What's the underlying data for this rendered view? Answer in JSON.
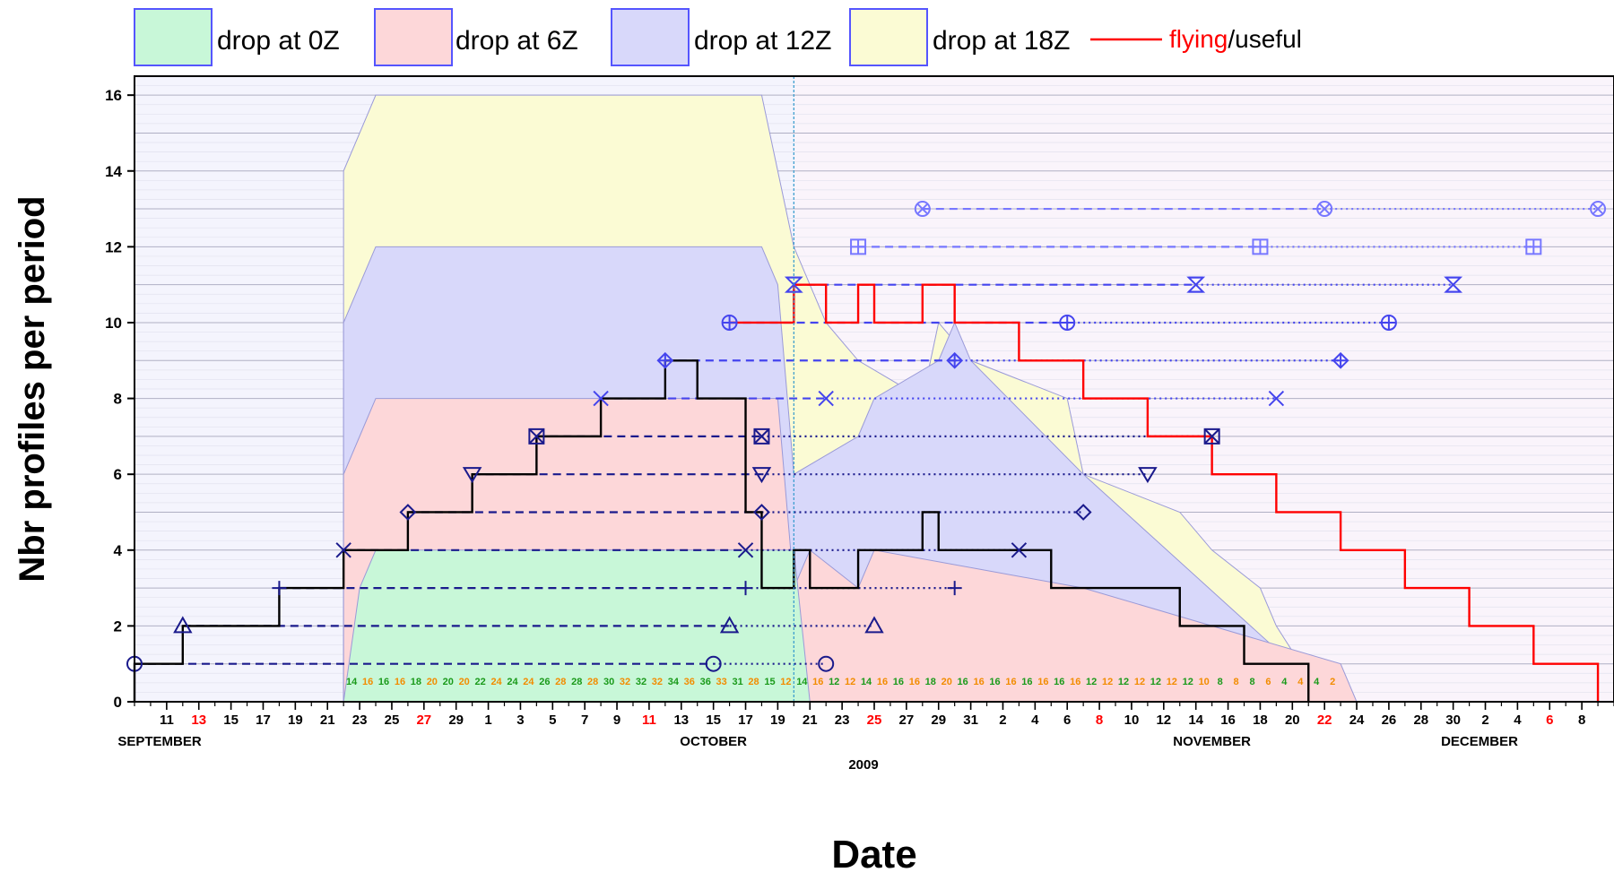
{
  "chart_data": {
    "type": "area",
    "xlabel": "Date",
    "ylabel": "Nbr profiles per period",
    "year_label": "2009",
    "ylim": [
      0,
      16.5
    ],
    "xlim": [
      "2009-09-09",
      "2009-12-10"
    ],
    "y_ticks": [
      0,
      2,
      4,
      6,
      8,
      10,
      12,
      14,
      16
    ],
    "x_tick_dates": [
      "2009-09-11",
      "2009-09-13",
      "2009-09-15",
      "2009-09-17",
      "2009-09-19",
      "2009-09-21",
      "2009-09-23",
      "2009-09-25",
      "2009-09-27",
      "2009-09-29",
      "2009-10-01",
      "2009-10-03",
      "2009-10-05",
      "2009-10-07",
      "2009-10-09",
      "2009-10-11",
      "2009-10-13",
      "2009-10-15",
      "2009-10-17",
      "2009-10-19",
      "2009-10-21",
      "2009-10-23",
      "2009-10-25",
      "2009-10-27",
      "2009-10-29",
      "2009-10-31",
      "2009-11-02",
      "2009-11-04",
      "2009-11-06",
      "2009-11-08",
      "2009-11-10",
      "2009-11-12",
      "2009-11-14",
      "2009-11-16",
      "2009-11-18",
      "2009-11-20",
      "2009-11-22",
      "2009-11-24",
      "2009-11-26",
      "2009-11-28",
      "2009-11-30",
      "2009-12-02",
      "2009-12-04",
      "2009-12-06",
      "2009-12-08"
    ],
    "x_tick_labels": [
      "11",
      "13",
      "15",
      "17",
      "19",
      "21",
      "23",
      "25",
      "27",
      "29",
      "1",
      "3",
      "5",
      "7",
      "9",
      "11",
      "13",
      "15",
      "17",
      "19",
      "21",
      "23",
      "25",
      "27",
      "29",
      "31",
      "2",
      "4",
      "6",
      "8",
      "10",
      "12",
      "14",
      "16",
      "18",
      "20",
      "22",
      "24",
      "26",
      "28",
      "30",
      "2",
      "4",
      "6",
      "8"
    ],
    "x_tick_highlight": [
      "2009-09-13",
      "2009-09-27",
      "2009-10-11",
      "2009-10-25",
      "2009-11-08",
      "2009-11-22",
      "2009-12-06"
    ],
    "months": [
      {
        "label": "SEPTEMBER",
        "date": "2009-09-15"
      },
      {
        "label": "OCTOBER",
        "date": "2009-10-15"
      },
      {
        "label": "NOVEMBER",
        "date": "2009-11-15"
      },
      {
        "label": "DECEMBER",
        "date": "2009-12-15"
      }
    ],
    "legend": [
      {
        "label": "drop at 0Z",
        "color": "#c8f7d8"
      },
      {
        "label": "drop at 6Z",
        "color": "#fdd7d9"
      },
      {
        "label": "drop at 12Z",
        "color": "#d8d8fa"
      },
      {
        "label": "drop at 18Z",
        "color": "#fbfbd4"
      },
      {
        "label_parts": [
          "flying",
          "/useful"
        ],
        "color": "#ff0000"
      }
    ],
    "colors": {
      "drop_0z": "#c8f7d8",
      "drop_6z": "#fdd7d9",
      "drop_12z": "#d8d8fa",
      "drop_18z": "#fbfbd4",
      "flying": "#ff0000",
      "useful": "#000000",
      "profile_line_before": "#1a1a8c",
      "profile_line_after": "#4444ee",
      "profile_line_late": "#7777ff",
      "legend_border": "#5555ff",
      "count_green": "#1a9a1a",
      "count_orange": "#f28c00",
      "highlight": "#ff0000"
    },
    "series": [
      {
        "name": "drop at 0Z",
        "type": "area",
        "points": [
          [
            "2009-09-22",
            0
          ],
          [
            "2009-09-23",
            3
          ],
          [
            "2009-09-24",
            4
          ],
          [
            "2009-10-20",
            4
          ],
          [
            "2009-10-21",
            0
          ]
        ]
      },
      {
        "name": "drop at 6Z",
        "type": "area",
        "points": [
          [
            "2009-09-22",
            0
          ],
          [
            "2009-09-22",
            6
          ],
          [
            "2009-09-23",
            7
          ],
          [
            "2009-09-24",
            8
          ],
          [
            "2009-10-19",
            8
          ],
          [
            "2009-10-20",
            3
          ],
          [
            "2009-10-21",
            4
          ],
          [
            "2009-10-24",
            3
          ],
          [
            "2009-10-25",
            4
          ],
          [
            "2009-11-07",
            3
          ],
          [
            "2009-11-15",
            2
          ],
          [
            "2009-11-23",
            1
          ],
          [
            "2009-11-24",
            0
          ]
        ]
      },
      {
        "name": "drop at 12Z",
        "type": "area",
        "points": [
          [
            "2009-09-22",
            0
          ],
          [
            "2009-09-22",
            10
          ],
          [
            "2009-09-23",
            11
          ],
          [
            "2009-09-24",
            12
          ],
          [
            "2009-10-18",
            12
          ],
          [
            "2009-10-19",
            11
          ],
          [
            "2009-10-20",
            6
          ],
          [
            "2009-10-24",
            7
          ],
          [
            "2009-10-25",
            8
          ],
          [
            "2009-10-29",
            9
          ],
          [
            "2009-10-30",
            10
          ],
          [
            "2009-10-31",
            9
          ],
          [
            "2009-11-07",
            6
          ],
          [
            "2009-11-20",
            1
          ],
          [
            "2009-11-23",
            0
          ]
        ]
      },
      {
        "name": "drop at 18Z",
        "type": "area",
        "points": [
          [
            "2009-09-22",
            0
          ],
          [
            "2009-09-22",
            14
          ],
          [
            "2009-09-23",
            15
          ],
          [
            "2009-09-24",
            16
          ],
          [
            "2009-10-18",
            16
          ],
          [
            "2009-10-19",
            14
          ],
          [
            "2009-10-20",
            12
          ],
          [
            "2009-10-21",
            11
          ],
          [
            "2009-10-22",
            10
          ],
          [
            "2009-10-24",
            9
          ],
          [
            "2009-10-28",
            8
          ],
          [
            "2009-10-29",
            10
          ],
          [
            "2009-10-31",
            9
          ],
          [
            "2009-11-06",
            8
          ],
          [
            "2009-11-07",
            6
          ],
          [
            "2009-11-13",
            5
          ],
          [
            "2009-11-15",
            4
          ],
          [
            "2009-11-18",
            3
          ],
          [
            "2009-11-19",
            2
          ],
          [
            "2009-11-22",
            0
          ]
        ]
      },
      {
        "name": "flying",
        "type": "step",
        "points": [
          [
            "2009-10-16",
            10
          ],
          [
            "2009-10-20",
            11
          ],
          [
            "2009-10-22",
            10
          ],
          [
            "2009-10-24",
            11
          ],
          [
            "2009-10-25",
            10
          ],
          [
            "2009-10-28",
            11
          ],
          [
            "2009-10-30",
            10
          ],
          [
            "2009-11-03",
            9
          ],
          [
            "2009-11-07",
            8
          ],
          [
            "2009-11-11",
            7
          ],
          [
            "2009-11-15",
            6
          ],
          [
            "2009-11-19",
            5
          ],
          [
            "2009-11-23",
            4
          ],
          [
            "2009-11-27",
            3
          ],
          [
            "2009-12-01",
            2
          ],
          [
            "2009-12-05",
            1
          ],
          [
            "2009-12-09",
            0
          ]
        ]
      },
      {
        "name": "useful",
        "type": "step",
        "points": [
          [
            "2009-09-09",
            0
          ],
          [
            "2009-09-09",
            1
          ],
          [
            "2009-09-12",
            2
          ],
          [
            "2009-09-18",
            3
          ],
          [
            "2009-09-22",
            4
          ],
          [
            "2009-09-26",
            5
          ],
          [
            "2009-09-30",
            6
          ],
          [
            "2009-10-04",
            7
          ],
          [
            "2009-10-08",
            8
          ],
          [
            "2009-10-12",
            9
          ],
          [
            "2009-10-14",
            8
          ],
          [
            "2009-10-17",
            5
          ],
          [
            "2009-10-18",
            3
          ],
          [
            "2009-10-20",
            4
          ],
          [
            "2009-10-21",
            3
          ],
          [
            "2009-10-24",
            4
          ],
          [
            "2009-10-28",
            5
          ],
          [
            "2009-10-29",
            4
          ],
          [
            "2009-11-05",
            3
          ],
          [
            "2009-11-13",
            2
          ],
          [
            "2009-11-17",
            1
          ],
          [
            "2009-11-21",
            0
          ]
        ]
      }
    ],
    "profiles": [
      {
        "level": 1,
        "marker": "circle",
        "launch": "2009-09-09",
        "useful_end": "2009-10-15",
        "flight_end": "2009-10-22"
      },
      {
        "level": 2,
        "marker": "triangle-up",
        "launch": "2009-09-12",
        "useful_end": "2009-10-16",
        "flight_end": "2009-10-25"
      },
      {
        "level": 3,
        "marker": "plus",
        "launch": "2009-09-18",
        "useful_end": "2009-10-17",
        "flight_end": "2009-10-30"
      },
      {
        "level": 4,
        "marker": "x",
        "launch": "2009-09-22",
        "useful_end": "2009-10-17",
        "flight_end": "2009-11-03"
      },
      {
        "level": 5,
        "marker": "diamond",
        "launch": "2009-09-26",
        "useful_end": "2009-10-18",
        "flight_end": "2009-11-07"
      },
      {
        "level": 6,
        "marker": "triangle-down",
        "launch": "2009-09-30",
        "useful_end": "2009-10-18",
        "flight_end": "2009-11-11"
      },
      {
        "level": 7,
        "marker": "square-x",
        "launch": "2009-10-04",
        "useful_end": "2009-10-18",
        "flight_end": "2009-11-15"
      },
      {
        "level": 8,
        "marker": "x",
        "launch": "2009-10-08",
        "useful_end": "2009-10-22",
        "flight_end": "2009-11-19"
      },
      {
        "level": 9,
        "marker": "diamond-plus",
        "launch": "2009-10-12",
        "useful_end": "2009-10-30",
        "flight_end": "2009-11-23"
      },
      {
        "level": 10,
        "marker": "circle-plus",
        "launch": "2009-10-16",
        "useful_end": "2009-11-06",
        "flight_end": "2009-11-26"
      },
      {
        "level": 11,
        "marker": "hourglass",
        "launch": "2009-10-20",
        "useful_end": "2009-11-14",
        "flight_end": "2009-11-30"
      },
      {
        "level": 12,
        "marker": "square-plus",
        "launch": "2009-10-24",
        "useful_end": "2009-11-18",
        "flight_end": "2009-12-05"
      },
      {
        "level": 13,
        "marker": "circle-x",
        "launch": "2009-10-28",
        "useful_end": "2009-11-22",
        "flight_end": "2009-12-09"
      }
    ],
    "daily_counts": [
      {
        "date": "2009-09-22",
        "v": "14",
        "c": "g"
      },
      {
        "date": "2009-09-23",
        "v": "16",
        "c": "o"
      },
      {
        "date": "2009-09-24",
        "v": "16",
        "c": "g"
      },
      {
        "date": "2009-09-25",
        "v": "16",
        "c": "o"
      },
      {
        "date": "2009-09-26",
        "v": "18",
        "c": "g"
      },
      {
        "date": "2009-09-27",
        "v": "20",
        "c": "o"
      },
      {
        "date": "2009-09-28",
        "v": "20",
        "c": "g"
      },
      {
        "date": "2009-09-29",
        "v": "20",
        "c": "o"
      },
      {
        "date": "2009-09-30",
        "v": "22",
        "c": "g"
      },
      {
        "date": "2009-10-01",
        "v": "24",
        "c": "o"
      },
      {
        "date": "2009-10-02",
        "v": "24",
        "c": "g"
      },
      {
        "date": "2009-10-03",
        "v": "24",
        "c": "o"
      },
      {
        "date": "2009-10-04",
        "v": "26",
        "c": "g"
      },
      {
        "date": "2009-10-05",
        "v": "28",
        "c": "o"
      },
      {
        "date": "2009-10-06",
        "v": "28",
        "c": "g"
      },
      {
        "date": "2009-10-07",
        "v": "28",
        "c": "o"
      },
      {
        "date": "2009-10-08",
        "v": "30",
        "c": "g"
      },
      {
        "date": "2009-10-09",
        "v": "32",
        "c": "o"
      },
      {
        "date": "2009-10-10",
        "v": "32",
        "c": "g"
      },
      {
        "date": "2009-10-11",
        "v": "32",
        "c": "o"
      },
      {
        "date": "2009-10-12",
        "v": "34",
        "c": "g"
      },
      {
        "date": "2009-10-13",
        "v": "36",
        "c": "o"
      },
      {
        "date": "2009-10-14",
        "v": "36",
        "c": "g"
      },
      {
        "date": "2009-10-15",
        "v": "33",
        "c": "o"
      },
      {
        "date": "2009-10-16",
        "v": "31",
        "c": "g"
      },
      {
        "date": "2009-10-17",
        "v": "28",
        "c": "o"
      },
      {
        "date": "2009-10-18",
        "v": "15",
        "c": "g"
      },
      {
        "date": "2009-10-19",
        "v": "12",
        "c": "o"
      },
      {
        "date": "2009-10-20",
        "v": "14",
        "c": "g"
      },
      {
        "date": "2009-10-21",
        "v": "16",
        "c": "o"
      },
      {
        "date": "2009-10-22",
        "v": "12",
        "c": "g"
      },
      {
        "date": "2009-10-23",
        "v": "12",
        "c": "o"
      },
      {
        "date": "2009-10-24",
        "v": "14",
        "c": "g"
      },
      {
        "date": "2009-10-25",
        "v": "16",
        "c": "o"
      },
      {
        "date": "2009-10-26",
        "v": "16",
        "c": "g"
      },
      {
        "date": "2009-10-27",
        "v": "16",
        "c": "o"
      },
      {
        "date": "2009-10-28",
        "v": "18",
        "c": "g"
      },
      {
        "date": "2009-10-29",
        "v": "20",
        "c": "o"
      },
      {
        "date": "2009-10-30",
        "v": "16",
        "c": "g"
      },
      {
        "date": "2009-10-31",
        "v": "16",
        "c": "o"
      },
      {
        "date": "2009-11-01",
        "v": "16",
        "c": "g"
      },
      {
        "date": "2009-11-02",
        "v": "16",
        "c": "o"
      },
      {
        "date": "2009-11-03",
        "v": "16",
        "c": "g"
      },
      {
        "date": "2009-11-04",
        "v": "16",
        "c": "o"
      },
      {
        "date": "2009-11-05",
        "v": "16",
        "c": "g"
      },
      {
        "date": "2009-11-06",
        "v": "16",
        "c": "o"
      },
      {
        "date": "2009-11-07",
        "v": "12",
        "c": "g"
      },
      {
        "date": "2009-11-08",
        "v": "12",
        "c": "o"
      },
      {
        "date": "2009-11-09",
        "v": "12",
        "c": "g"
      },
      {
        "date": "2009-11-10",
        "v": "12",
        "c": "o"
      },
      {
        "date": "2009-11-11",
        "v": "12",
        "c": "g"
      },
      {
        "date": "2009-11-12",
        "v": "12",
        "c": "o"
      },
      {
        "date": "2009-11-13",
        "v": "12",
        "c": "g"
      },
      {
        "date": "2009-11-14",
        "v": "10",
        "c": "o"
      },
      {
        "date": "2009-11-15",
        "v": "8",
        "c": "g"
      },
      {
        "date": "2009-11-16",
        "v": "8",
        "c": "o"
      },
      {
        "date": "2009-11-17",
        "v": "8",
        "c": "g"
      },
      {
        "date": "2009-11-18",
        "v": "6",
        "c": "o"
      },
      {
        "date": "2009-11-19",
        "v": "4",
        "c": "g"
      },
      {
        "date": "2009-11-20",
        "v": "4",
        "c": "o"
      },
      {
        "date": "2009-11-21",
        "v": "4",
        "c": "g"
      },
      {
        "date": "2009-11-22",
        "v": "2",
        "c": "o"
      }
    ],
    "grid": true,
    "legend_position": "top",
    "reference_line_date": "2009-10-20"
  }
}
